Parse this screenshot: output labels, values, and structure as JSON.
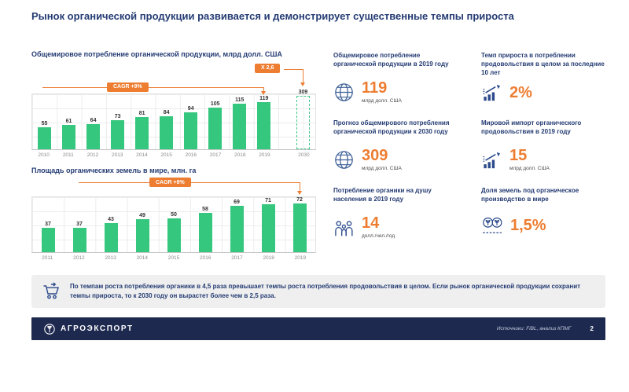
{
  "page": {
    "title": "Рынок органической продукции развивается и демонстрирует существенные темпы прироста"
  },
  "chart_data": [
    {
      "type": "bar",
      "title": "Общемировое потребление органической продукции, млрд долл. США",
      "categories": [
        "2010",
        "2011",
        "2012",
        "2013",
        "2014",
        "2015",
        "2016",
        "2017",
        "2018",
        "2019"
      ],
      "values": [
        55,
        61,
        64,
        73,
        81,
        84,
        94,
        105,
        115,
        119
      ],
      "forecast": {
        "category": "2030",
        "value": 309
      },
      "cagr_label": "CAGR +9%",
      "multiplier_label": "Х 2,6",
      "bar_color": "#36c77e",
      "accent_color": "#ed7d31",
      "ylim": [
        0,
        125
      ],
      "grid": true,
      "xlabel": "",
      "ylabel": ""
    },
    {
      "type": "bar",
      "title": "Площадь органических земель в мире, млн. га",
      "categories": [
        "2011",
        "2012",
        "2013",
        "2014",
        "2015",
        "2016",
        "2017",
        "2018",
        "2019"
      ],
      "values": [
        37,
        37,
        43,
        49,
        50,
        58,
        69,
        71,
        72
      ],
      "cagr_label": "CAGR +8%",
      "bar_color": "#36c77e",
      "accent_color": "#ed7d31",
      "ylim": [
        0,
        80
      ],
      "grid": true,
      "xlabel": "",
      "ylabel": ""
    }
  ],
  "stats": [
    {
      "title": "Общемировое потребление органической продукции в 2019 году",
      "icon": "globe-icon",
      "value": "119",
      "unit": "млрд долл. США"
    },
    {
      "title": "Темп прироста в потреблении продовольствия в целом за последние 10 лет",
      "icon": "growth-chart-icon",
      "value": "2%",
      "unit": ""
    },
    {
      "title": "Прогноз общемирового потребления органической продукции к 2030 году",
      "icon": "globe-icon",
      "value": "309",
      "unit": "млрд долл. США"
    },
    {
      "title": "Мировой импорт органического продовольствия в 2019 году",
      "icon": "growth-chart-icon",
      "value": "15",
      "unit": "млрд долл. США"
    },
    {
      "title": "Потребление органики на душу населения в 2019 году",
      "icon": "people-icon",
      "value": "14",
      "unit": "долл./чел./год"
    },
    {
      "title": "Доля земель под органическое производство в мире",
      "icon": "organic-field-icon",
      "value": "1,5%",
      "unit": ""
    }
  ],
  "note": {
    "text": "По темпам роста потребления органики в 4,5 раза превышает темпы роста потребления продовольствия в целом. Если рынок органической продукции сохранит темпы прироста, то к 2030 году он вырастет более чем в 2,5 раза."
  },
  "footer": {
    "logo": "АГРОЭКСПОРТ",
    "sources": "Источники:  FiBL, анализ КПМГ",
    "page_number": "2"
  },
  "colors": {
    "navy": "#243b73",
    "orange": "#ed7d31",
    "green": "#36c77e",
    "footer_bg": "#1e2950"
  }
}
